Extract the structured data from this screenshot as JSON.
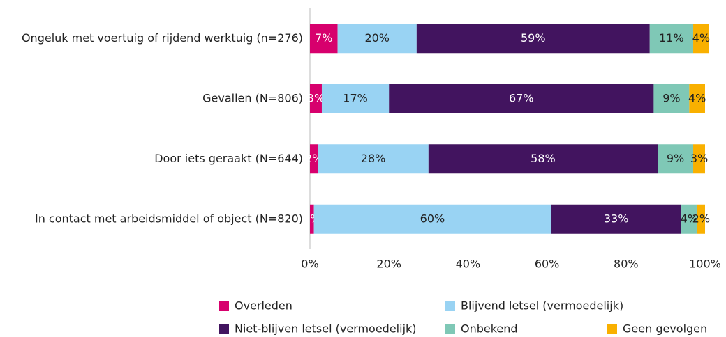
{
  "chart_data": {
    "type": "stacked-barh",
    "categories": [
      "Ongeluk met voertuig of rijdend werktuig (n=276)",
      "Gevallen (N=806)",
      "Door iets geraakt (N=644)",
      "In contact met arbeidsmiddel of object (N=820)"
    ],
    "series": [
      {
        "name": "Overleden",
        "color": "#d7006d",
        "values": [
          7,
          3,
          2,
          1
        ],
        "value_labels": [
          "7%",
          "3%",
          "2%",
          "1%"
        ]
      },
      {
        "name": "Blijvend letsel (vermoedelijk)",
        "color": "#99d3f3",
        "values": [
          20,
          17,
          28,
          60
        ],
        "value_labels": [
          "20%",
          "17%",
          "28%",
          "60%"
        ]
      },
      {
        "name": "Niet-blijven letsel (vermoedelijk)",
        "color": "#42145f",
        "values": [
          59,
          67,
          58,
          33
        ],
        "value_labels": [
          "59%",
          "67%",
          "58%",
          "33%"
        ]
      },
      {
        "name": "Onbekend",
        "color": "#7fc8b6",
        "values": [
          11,
          9,
          9,
          4
        ],
        "value_labels": [
          "11%",
          "9%",
          "9%",
          "4%"
        ]
      },
      {
        "name": "Geen gevolgen",
        "color": "#f9b000",
        "values": [
          4,
          4,
          3,
          2
        ],
        "value_labels": [
          "4%",
          "4%",
          "3%",
          "2%"
        ]
      }
    ],
    "xlim": [
      0,
      100
    ],
    "xticks": [
      {
        "value": 0,
        "label": "0%"
      },
      {
        "value": 20,
        "label": "20%"
      },
      {
        "value": 40,
        "label": "40%"
      },
      {
        "value": 60,
        "label": "60%"
      },
      {
        "value": 80,
        "label": "80%"
      },
      {
        "value": 100,
        "label": "100%"
      }
    ],
    "grid": false,
    "legend": "bottom"
  }
}
